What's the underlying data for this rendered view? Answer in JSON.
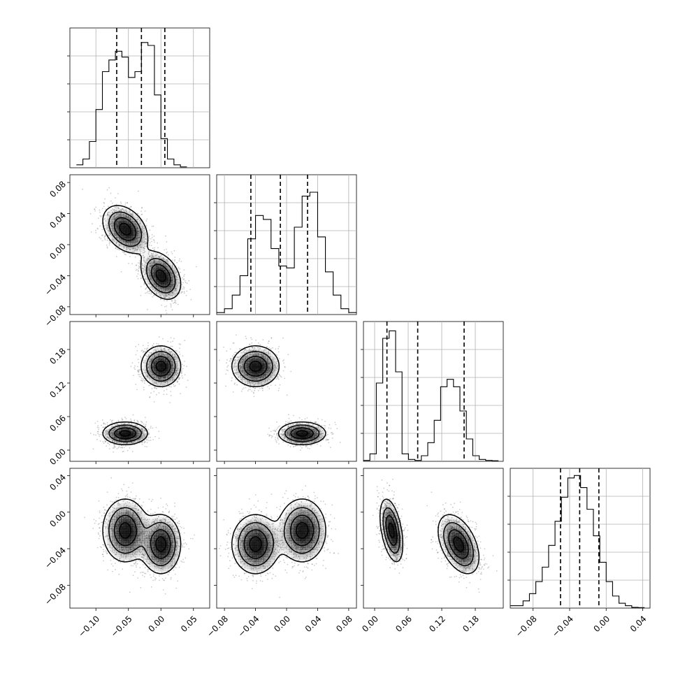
{
  "chart_data": {
    "type": "corner",
    "grid": true,
    "parameters": [
      {
        "range": [
          -0.14,
          0.075
        ],
        "ticks": [
          -0.1,
          -0.05,
          0.0,
          0.05
        ],
        "tick_labels": [
          "−0.10",
          "−0.05",
          "0.00",
          "0.05"
        ],
        "quantiles": [
          -0.068,
          -0.03,
          0.006
        ],
        "histogram": {
          "edges_start": -0.13,
          "bin_width": 0.01,
          "counts": [
            1,
            3,
            9,
            20,
            33,
            37,
            40,
            38,
            31,
            33,
            43,
            42,
            25,
            10,
            3,
            1,
            0.3
          ]
        },
        "hist_ylim": [
          0,
          48
        ]
      },
      {
        "range": [
          -0.09,
          0.09
        ],
        "ticks": [
          -0.08,
          -0.04,
          0.0,
          0.04,
          0.08
        ],
        "tick_labels": [
          "−0.08",
          "−0.04",
          "0.00",
          "0.04",
          "0.08"
        ],
        "quantiles": [
          -0.046,
          -0.008,
          0.027
        ],
        "histogram": {
          "edges_start": -0.09,
          "bin_width": 0.01,
          "counts": [
            1,
            3,
            10,
            20,
            39,
            51,
            49,
            34,
            25,
            24,
            45,
            61,
            63,
            40,
            22,
            10,
            3,
            1
          ]
        },
        "hist_ylim": [
          0,
          72
        ]
      },
      {
        "range": [
          -0.02,
          0.23
        ],
        "ticks": [
          0.0,
          0.06,
          0.12,
          0.18
        ],
        "tick_labels": [
          "0.00",
          "0.06",
          "0.12",
          "0.18"
        ],
        "quantiles": [
          0.022,
          0.077,
          0.16
        ],
        "histogram": {
          "edges_start": -0.02,
          "bin_width": 0.0115,
          "counts": [
            0.5,
            4,
            42,
            66,
            70,
            48,
            4,
            1,
            0.5,
            3,
            10,
            22,
            40,
            44,
            40,
            27,
            12,
            3,
            1,
            0.5,
            0.3
          ]
        },
        "hist_ylim": [
          0,
          75
        ]
      },
      {
        "range": [
          -0.105,
          0.048
        ],
        "ticks": [
          -0.08,
          -0.04,
          0.0,
          0.04
        ],
        "tick_labels": [
          "−0.08",
          "−0.04",
          "0.00",
          "0.04"
        ],
        "quantiles": [
          -0.05,
          -0.029,
          -0.008
        ],
        "histogram": {
          "edges_start": -0.105,
          "bin_width": 0.007,
          "counts": [
            1,
            1,
            3,
            6,
            11,
            17,
            26,
            36,
            46,
            54,
            55,
            50,
            41,
            30,
            19,
            11,
            5,
            2,
            1,
            0.3,
            0.2
          ]
        },
        "hist_ylim": [
          0,
          58
        ]
      }
    ],
    "modes": [
      {
        "weight": 0.5,
        "mean": [
          -0.055,
          0.02,
          0.03,
          -0.02
        ],
        "sd": [
          0.017,
          0.015,
          0.01,
          0.017
        ]
      },
      {
        "weight": 0.5,
        "mean": [
          0.0,
          -0.04,
          0.15,
          -0.035
        ],
        "sd": [
          0.015,
          0.015,
          0.018,
          0.016
        ]
      }
    ]
  },
  "colors": {
    "contour_line": "#000000",
    "density_fill": "#000000",
    "scatter": "#6d6d6d",
    "grid": "#b0b0b0"
  }
}
